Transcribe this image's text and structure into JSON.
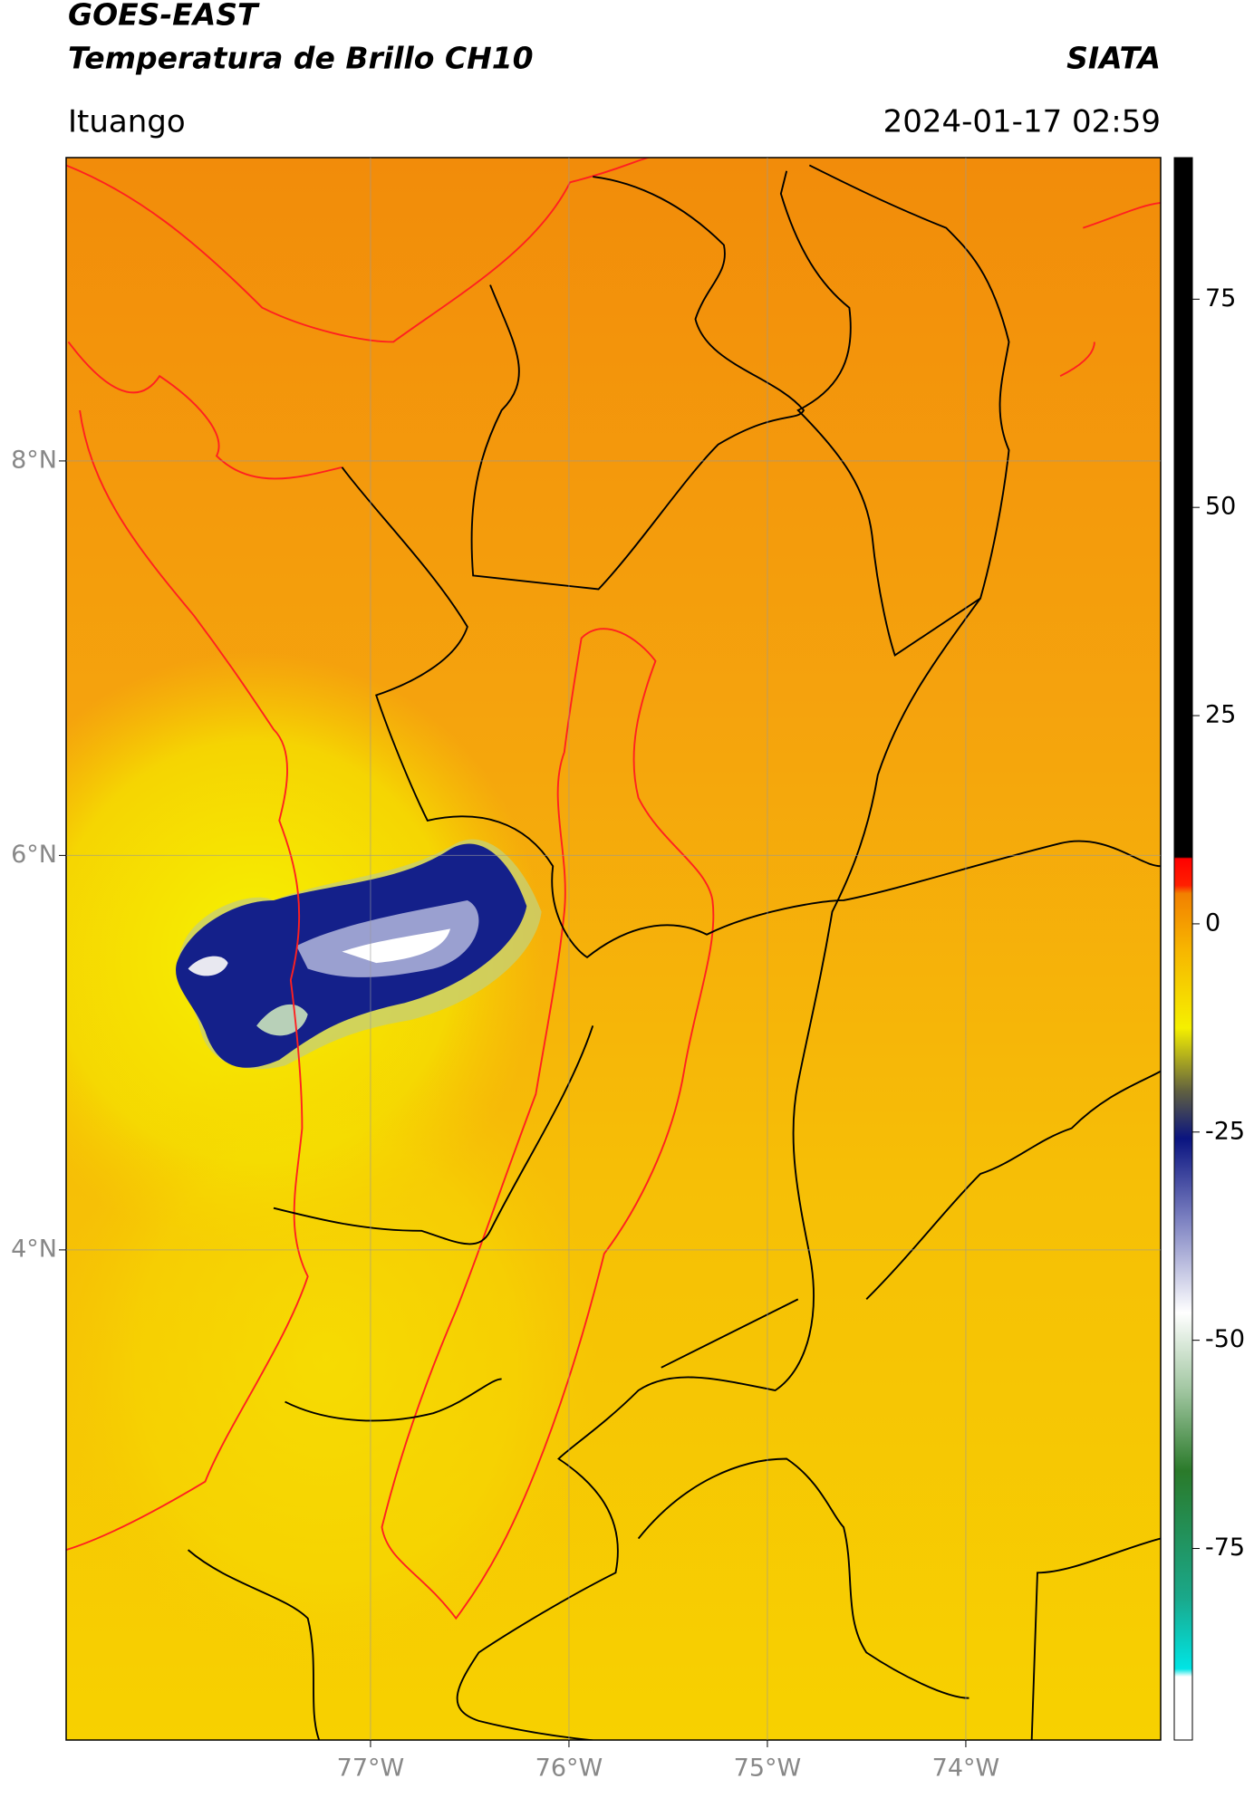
{
  "header": {
    "title_line1": "GOES-EAST",
    "title_line2": "Temperatura de Brillo CH10",
    "agency": "SIATA",
    "location": "Ituango",
    "datetime": "2024-01-17 02:59"
  },
  "map": {
    "xlim": [
      -78.534,
      -73.018
    ],
    "ylim": [
      1.515,
      9.538
    ],
    "xticks": [
      {
        "value": -77,
        "label": "77°W"
      },
      {
        "value": -76,
        "label": "76°W"
      },
      {
        "value": -75,
        "label": "75°W"
      },
      {
        "value": -74,
        "label": "74°W"
      }
    ],
    "yticks": [
      {
        "value": 8,
        "label": "8°N"
      },
      {
        "value": 6,
        "label": "6°N"
      },
      {
        "value": 4,
        "label": "4°N"
      }
    ],
    "grid": true
  },
  "colorbar": {
    "clim": [
      -98,
      92
    ],
    "ticks": [
      75,
      50,
      25,
      0,
      -25,
      -50,
      -75
    ]
  }
}
